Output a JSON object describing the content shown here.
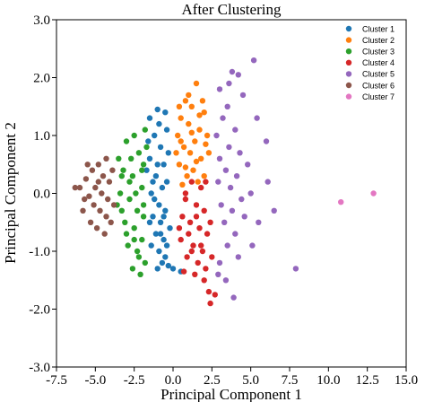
{
  "chart_data": {
    "type": "scatter",
    "title": "After Clustering",
    "xlabel": "Principal Component 1",
    "ylabel": "Principal Component 2",
    "xlim": [
      -7.5,
      15.0
    ],
    "ylim": [
      -3.0,
      3.0
    ],
    "xticks": [
      "-7.5",
      "-5.0",
      "-2.5",
      "0.0",
      "2.5",
      "5.0",
      "7.5",
      "10.0",
      "12.5",
      "15.0"
    ],
    "yticks": [
      "3.0",
      "2.0",
      "1.0",
      "0.0",
      "-1.0",
      "-2.0",
      "-3.0"
    ],
    "grid": false,
    "legend_position": "top-right",
    "series": [
      {
        "name": "Cluster 1",
        "color": "#1f77b4",
        "points": [
          [
            -1.5,
            1.3
          ],
          [
            -1.0,
            1.45
          ],
          [
            -0.5,
            1.4
          ],
          [
            -1.2,
            1.0
          ],
          [
            -0.8,
            0.8
          ],
          [
            -1.5,
            0.6
          ],
          [
            -0.6,
            0.5
          ],
          [
            -1.1,
            0.3
          ],
          [
            -0.7,
            0.1
          ],
          [
            -1.4,
            0.0
          ],
          [
            -0.9,
            -0.2
          ],
          [
            -0.5,
            -0.3
          ],
          [
            -1.3,
            -0.4
          ],
          [
            -0.8,
            -0.5
          ],
          [
            -1.1,
            -0.7
          ],
          [
            -0.6,
            -0.8
          ],
          [
            -1.4,
            -0.9
          ],
          [
            -0.9,
            -1.0
          ],
          [
            -0.7,
            -1.2
          ],
          [
            -1.0,
            -1.3
          ],
          [
            -1.2,
            -0.1
          ],
          [
            -0.4,
            0.2
          ],
          [
            -1.6,
            0.9
          ],
          [
            -0.3,
            0.7
          ],
          [
            -0.5,
            -1.1
          ],
          [
            -0.2,
            -0.6
          ],
          [
            -1.0,
            0.5
          ],
          [
            -0.6,
            -0.4
          ],
          [
            -1.3,
            0.2
          ],
          [
            -0.9,
            1.2
          ],
          [
            -0.4,
            -0.9
          ],
          [
            0.0,
            -1.3
          ],
          [
            0.5,
            -1.35
          ],
          [
            -0.3,
            -1.25
          ],
          [
            -1.7,
            0.4
          ],
          [
            -0.8,
            -0.7
          ],
          [
            -1.5,
            -0.5
          ],
          [
            -0.4,
            1.1
          ]
        ]
      },
      {
        "name": "Cluster 2",
        "color": "#ff7f0e",
        "points": [
          [
            1.5,
            1.9
          ],
          [
            0.8,
            1.6
          ],
          [
            1.2,
            1.5
          ],
          [
            2.0,
            1.4
          ],
          [
            0.5,
            1.3
          ],
          [
            1.0,
            1.2
          ],
          [
            1.7,
            1.1
          ],
          [
            0.3,
            1.0
          ],
          [
            1.4,
            0.9
          ],
          [
            2.1,
            0.85
          ],
          [
            0.7,
            0.8
          ],
          [
            1.1,
            0.7
          ],
          [
            1.8,
            0.6
          ],
          [
            0.4,
            0.5
          ],
          [
            1.3,
            0.4
          ],
          [
            0.9,
            0.3
          ],
          [
            1.6,
            0.2
          ],
          [
            0.6,
            0.15
          ],
          [
            2.2,
            1.0
          ],
          [
            0.2,
            0.7
          ],
          [
            1.9,
            1.6
          ],
          [
            1.0,
            1.7
          ],
          [
            0.5,
            0.9
          ],
          [
            1.5,
            0.55
          ],
          [
            2.3,
            0.7
          ],
          [
            0.8,
            0.45
          ],
          [
            1.2,
            1.05
          ],
          [
            0.4,
            1.5
          ],
          [
            1.7,
            1.35
          ],
          [
            2.0,
            0.3
          ]
        ]
      },
      {
        "name": "Cluster 3",
        "color": "#2ca02c",
        "points": [
          [
            -2.5,
            1.0
          ],
          [
            -1.8,
            1.1
          ],
          [
            -3.0,
            0.9
          ],
          [
            -2.2,
            0.7
          ],
          [
            -1.9,
            0.5
          ],
          [
            -3.2,
            0.4
          ],
          [
            -2.6,
            0.3
          ],
          [
            -2.0,
            0.1
          ],
          [
            -3.4,
            0.0
          ],
          [
            -2.8,
            -0.1
          ],
          [
            -2.3,
            -0.3
          ],
          [
            -1.9,
            -0.4
          ],
          [
            -3.1,
            -0.5
          ],
          [
            -2.5,
            -0.6
          ],
          [
            -2.0,
            -0.8
          ],
          [
            -2.9,
            -0.9
          ],
          [
            -2.3,
            -1.0
          ],
          [
            -1.8,
            -1.2
          ],
          [
            -2.6,
            -1.3
          ],
          [
            -2.1,
            -1.4
          ],
          [
            -3.5,
            0.6
          ],
          [
            -1.7,
            0.8
          ],
          [
            -2.7,
            0.6
          ],
          [
            -3.3,
            -0.3
          ],
          [
            -2.4,
            0.0
          ],
          [
            -1.9,
            -0.2
          ],
          [
            -3.0,
            -0.7
          ],
          [
            -2.2,
            -1.1
          ],
          [
            -2.8,
            0.2
          ],
          [
            -2.0,
            0.4
          ],
          [
            -3.3,
            0.3
          ],
          [
            -2.5,
            -0.8
          ],
          [
            -3.6,
            -0.2
          ]
        ]
      },
      {
        "name": "Cluster 4",
        "color": "#d62728",
        "points": [
          [
            1.2,
            0.2
          ],
          [
            1.8,
            0.1
          ],
          [
            0.8,
            -0.1
          ],
          [
            1.5,
            -0.2
          ],
          [
            2.0,
            -0.3
          ],
          [
            0.6,
            -0.4
          ],
          [
            1.1,
            -0.5
          ],
          [
            1.7,
            -0.6
          ],
          [
            2.2,
            -0.7
          ],
          [
            0.5,
            -0.8
          ],
          [
            1.3,
            -0.9
          ],
          [
            1.9,
            -1.0
          ],
          [
            0.9,
            -1.1
          ],
          [
            1.6,
            -1.2
          ],
          [
            2.1,
            -1.3
          ],
          [
            0.7,
            -1.35
          ],
          [
            1.4,
            -1.4
          ],
          [
            2.0,
            -1.5
          ],
          [
            2.3,
            -1.7
          ],
          [
            2.4,
            -1.9
          ],
          [
            2.7,
            -1.75
          ],
          [
            1.0,
            -0.7
          ],
          [
            1.8,
            -0.9
          ],
          [
            2.4,
            -0.5
          ],
          [
            0.4,
            -0.6
          ],
          [
            1.2,
            -1.0
          ],
          [
            2.5,
            -1.1
          ],
          [
            0.8,
            0.0
          ],
          [
            2.1,
            0.2
          ],
          [
            1.5,
            -0.4
          ]
        ]
      },
      {
        "name": "Cluster 5",
        "color": "#9467bd",
        "points": [
          [
            5.2,
            2.3
          ],
          [
            4.2,
            2.05
          ],
          [
            3.8,
            2.1
          ],
          [
            3.0,
            1.8
          ],
          [
            3.5,
            1.5
          ],
          [
            4.5,
            1.7
          ],
          [
            3.2,
            1.3
          ],
          [
            4.0,
            1.1
          ],
          [
            2.8,
            1.0
          ],
          [
            3.6,
            0.8
          ],
          [
            4.3,
            0.7
          ],
          [
            3.0,
            0.6
          ],
          [
            4.8,
            0.5
          ],
          [
            3.4,
            0.4
          ],
          [
            4.1,
            0.3
          ],
          [
            2.9,
            0.2
          ],
          [
            3.7,
            0.1
          ],
          [
            5.0,
            0.0
          ],
          [
            4.4,
            -0.1
          ],
          [
            3.1,
            -0.2
          ],
          [
            3.8,
            -0.3
          ],
          [
            4.6,
            -0.4
          ],
          [
            3.3,
            -0.5
          ],
          [
            4.0,
            -0.7
          ],
          [
            3.5,
            -0.9
          ],
          [
            4.2,
            -1.1
          ],
          [
            3.0,
            -1.2
          ],
          [
            6.1,
            0.2
          ],
          [
            5.5,
            -0.5
          ],
          [
            6.5,
            -0.3
          ],
          [
            5.1,
            -0.9
          ],
          [
            7.9,
            -1.3
          ],
          [
            3.4,
            -1.5
          ],
          [
            3.9,
            -1.8
          ],
          [
            2.9,
            -1.4
          ],
          [
            5.4,
            1.3
          ],
          [
            6.0,
            0.9
          ],
          [
            3.6,
            1.9
          ]
        ]
      },
      {
        "name": "Cluster 6",
        "color": "#8c564b",
        "points": [
          [
            -4.3,
            0.6
          ],
          [
            -4.8,
            0.5
          ],
          [
            -5.2,
            0.4
          ],
          [
            -4.5,
            0.3
          ],
          [
            -5.6,
            0.25
          ],
          [
            -4.1,
            0.2
          ],
          [
            -5.0,
            0.1
          ],
          [
            -6.0,
            0.1
          ],
          [
            -4.6,
            0.0
          ],
          [
            -5.4,
            -0.05
          ],
          [
            -4.2,
            -0.1
          ],
          [
            -5.1,
            -0.2
          ],
          [
            -4.7,
            -0.3
          ],
          [
            -5.8,
            -0.3
          ],
          [
            -4.3,
            -0.4
          ],
          [
            -5.3,
            -0.5
          ],
          [
            -4.9,
            -0.6
          ],
          [
            -4.4,
            -0.7
          ],
          [
            -3.9,
            0.4
          ],
          [
            -3.8,
            -0.2
          ],
          [
            -5.5,
            0.5
          ],
          [
            -6.3,
            0.1
          ],
          [
            -4.0,
            -0.5
          ],
          [
            -5.7,
            -0.1
          ],
          [
            -4.8,
            0.2
          ]
        ]
      },
      {
        "name": "Cluster 7",
        "color": "#e377c2",
        "points": [
          [
            10.8,
            -0.15
          ],
          [
            12.9,
            0.0
          ]
        ]
      }
    ]
  }
}
